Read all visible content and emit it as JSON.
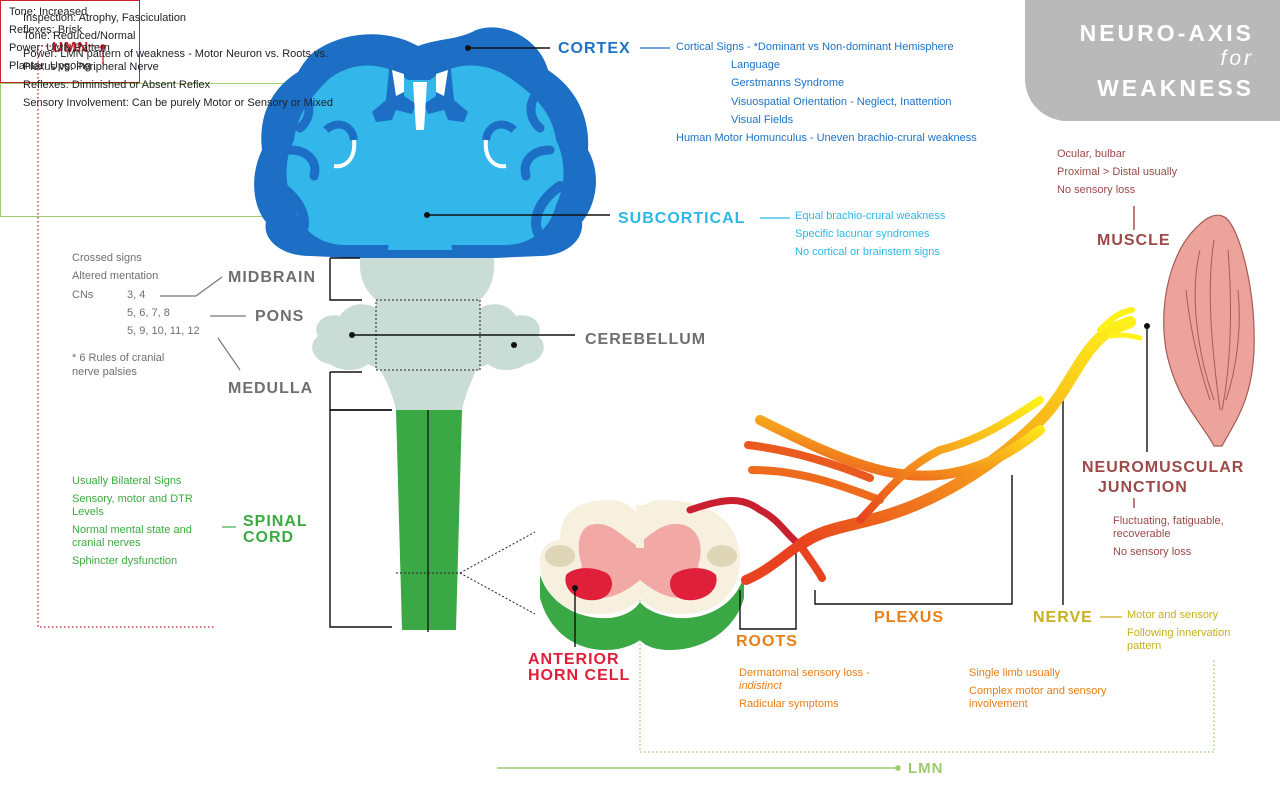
{
  "title": {
    "line1": "NEURO-AXIS",
    "line2": "for",
    "line3": "WEAKNESS"
  },
  "umn": {
    "label": "UMN",
    "items": [
      "Tone: Increased",
      "Reflexes: Brisk",
      "Power: UMN Pattern",
      "Plantar: Upgoing"
    ]
  },
  "cortex": {
    "label": "CORTEX",
    "items": [
      "Cortical Signs - *Dominant vs Non-dominant Hemisphere",
      "Language",
      "Gerstmanns Syndrome",
      "Visuospatial Orientation - Neglect, Inattention",
      "Visual Fields",
      "Human Motor Homunculus - Uneven brachio-crural weakness"
    ]
  },
  "subcortical": {
    "label": "SUBCORTICAL",
    "items": [
      "Equal brachio-crural weakness",
      "Specific lacunar syndromes",
      "No cortical or brainstem signs"
    ]
  },
  "brainstem": {
    "notes": [
      "Crossed signs",
      "Altered mentation"
    ],
    "cns_label": "CNs",
    "midbrain": {
      "label": "MIDBRAIN",
      "cn": "3, 4"
    },
    "pons": {
      "label": "PONS",
      "cn": "5, 6, 7, 8"
    },
    "medulla": {
      "label": "MEDULLA",
      "cn": "5, 9, 10, 11, 12"
    },
    "footnote": [
      "* 6 Rules of cranial",
      "nerve palsies"
    ]
  },
  "cerebellum": {
    "label": "CEREBELLUM"
  },
  "spinal_cord": {
    "label_line1": "SPINAL",
    "label_line2": "CORD",
    "items": [
      {
        "l1": "Usually Bilateral Signs",
        "l2": ""
      },
      {
        "l1": "Sensory, motor and DTR",
        "l2": "Levels"
      },
      {
        "l1": "Normal mental state and",
        "l2": "cranial nerves"
      },
      {
        "l1": "Sphincter dysfunction",
        "l2": ""
      }
    ]
  },
  "anterior_horn": {
    "label_line1": "ANTERIOR",
    "label_line2": "HORN CELL"
  },
  "roots": {
    "label": "ROOTS",
    "item1_l1": "Dermatomal sensory loss -",
    "item1_l2": "indistinct",
    "item2": "Radicular symptoms"
  },
  "plexus": {
    "label": "PLEXUS",
    "item1": "Single limb usually",
    "item2_l1": "Complex motor and sensory",
    "item2_l2": "involvement"
  },
  "nerve": {
    "label": "NERVE",
    "item1": "Motor and sensory",
    "item2_l1": "Following innervation",
    "item2_l2": "pattern"
  },
  "nmj": {
    "label_line1": "NEUROMUSCULAR",
    "label_line2": "JUNCTION",
    "item1_l1": "Fluctuating, fatiguable,",
    "item1_l2": "recoverable",
    "item2": "No sensory loss"
  },
  "muscle": {
    "label": "MUSCLE",
    "items": [
      "Ocular, bulbar",
      "Proximal > Distal usually",
      "No sensory loss"
    ]
  },
  "lmn": {
    "label": "LMN",
    "items": [
      {
        "l1": "Inspection: Atrophy, Fasciculation",
        "l2": ""
      },
      {
        "l1": "Tone: Reduced/Normal",
        "l2": ""
      },
      {
        "l1": "Power: LMN pattern of weakness - Motor Neuron vs. Roots vs.",
        "l2": "Plexus vs. Peripheral Nerve"
      },
      {
        "l1": "Reflexes: Diminished or Absent Reflex",
        "l2": ""
      },
      {
        "l1": "Sensory Involvement: Can be purely Motor or Sensory or Mixed",
        "l2": ""
      }
    ]
  },
  "colors": {
    "umn": "#c8202f",
    "cortex_dark": "#1c6fc5",
    "cortex_light": "#33b6ea",
    "brainstem": "#c9dcd6",
    "spinal_cord": "#3aa845",
    "anterior_horn": "#e0203b",
    "roots": "#e77f16",
    "nerve": "#c9b01c",
    "muscle": "#e9a39c",
    "lmn": "#9fca6e",
    "title_bg": "#b9b9b9"
  }
}
